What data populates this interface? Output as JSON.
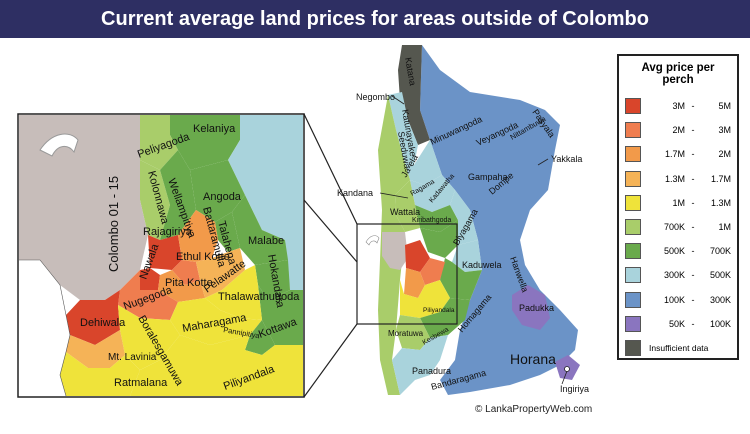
{
  "title": "Current average land prices for areas outside of Colombo",
  "colors": {
    "band_3M_5M": "#d9452b",
    "band_2M_3M": "#ef7d4f",
    "band_1_7M_2M": "#f29a4a",
    "band_1_3M_1_7M": "#f5b357",
    "band_1M_1_3M": "#efe33a",
    "band_700K_1M": "#a9cd6a",
    "band_500K_700K": "#6aaa4c",
    "band_300K_500K": "#a9d3dc",
    "band_100K_300K": "#6b93c7",
    "band_50K_100K": "#8a75bf",
    "insufficient": "#55574f",
    "colombo": "#c7bdba",
    "title_bar": "#2e2f63"
  },
  "legend": {
    "title": "Avg price per perch",
    "rows": [
      {
        "low": "3M",
        "dash": "-",
        "high": "5M",
        "color": "#d9452b"
      },
      {
        "low": "2M",
        "dash": "-",
        "high": "3M",
        "color": "#ef7d4f"
      },
      {
        "low": "1.7M",
        "dash": "-",
        "high": "2M",
        "color": "#f29a4a"
      },
      {
        "low": "1.3M",
        "dash": "-",
        "high": "1.7M",
        "color": "#f5b357"
      },
      {
        "low": "1M",
        "dash": "-",
        "high": "1.3M",
        "color": "#efe33a"
      },
      {
        "low": "700K",
        "dash": "-",
        "high": "1M",
        "color": "#a9cd6a"
      },
      {
        "low": "500K",
        "dash": "-",
        "high": "700K",
        "color": "#6aaa4c"
      },
      {
        "low": "300K",
        "dash": "-",
        "high": "500K",
        "color": "#a9d3dc"
      },
      {
        "low": "100K",
        "dash": "-",
        "high": "300K",
        "color": "#6b93c7"
      },
      {
        "low": "50K",
        "dash": "-",
        "high": "100K",
        "color": "#8a75bf"
      }
    ],
    "insufficient_label": "Insufficient data",
    "insufficient_color": "#55574f"
  },
  "zoom_labels": {
    "colombo": "Colombo 01 - 15",
    "peliyagoda": "Peliyagoda",
    "kelaniya": "Kelaniya",
    "kolonnawa": "Kolonnawa",
    "wellampitiya": "Wellampitiya",
    "angoda": "Angoda",
    "rajagiriya": "Rajagiriya",
    "nawala": "Nawala",
    "ethul_kotte": "Ethul Kotte",
    "battaramulla": "Battaramulla",
    "talahena": "Talahena",
    "malabe": "Malabe",
    "pita_kotte": "Pita Kotte",
    "pelawatte": "Pelawatte",
    "hokandara": "Hokandara",
    "nugegoda": "Nugegoda",
    "thalawathugoda": "Thalawathugoda",
    "dehiwala": "Dehiwala",
    "maharagama": "Maharagama",
    "kottawa": "Kottawa",
    "pannipitiya": "Pannipitiya",
    "boralesgamuwa": "Boralesgamuwa",
    "mt_lavinia": "Mt. Lavinia",
    "ratmalana": "Ratmalana",
    "piliyandala": "Piliyandala"
  },
  "main_labels": {
    "katana": "Katana",
    "negombo": "Negombo",
    "katunayake": "Katunayake",
    "seeduwa": "Seeduwa",
    "minuwangoda": "Minuwangoda",
    "pasyala": "Pasyala",
    "veyangoda": "Veyangoda",
    "nittambuwa": "Nittambuwa",
    "yakkala": "Yakkala",
    "ja_ela": "Ja-ela",
    "gampaha": "Gampaha",
    "kandana": "Kandana",
    "ragama": "Ragama",
    "kadawatha": "Kadawatha",
    "dompe": "Dompe",
    "wattala": "Wattala",
    "kiribathgoda": "Kiribathgoda",
    "biyagama": "Biyagama",
    "kaduwela": "Kaduwela",
    "hanwella": "Hanwella",
    "padukka": "Padukka",
    "homagama": "Homagama",
    "moratuwa": "Moratuwa",
    "kesbewa": "Kesbewa",
    "piliyandala": "Piliyandala",
    "horana": "Horana",
    "panadura": "Panadura",
    "bandaragama": "Bandaragama",
    "ingiriya": "Ingiriya"
  },
  "credit": "© LankaPropertyWeb.com"
}
